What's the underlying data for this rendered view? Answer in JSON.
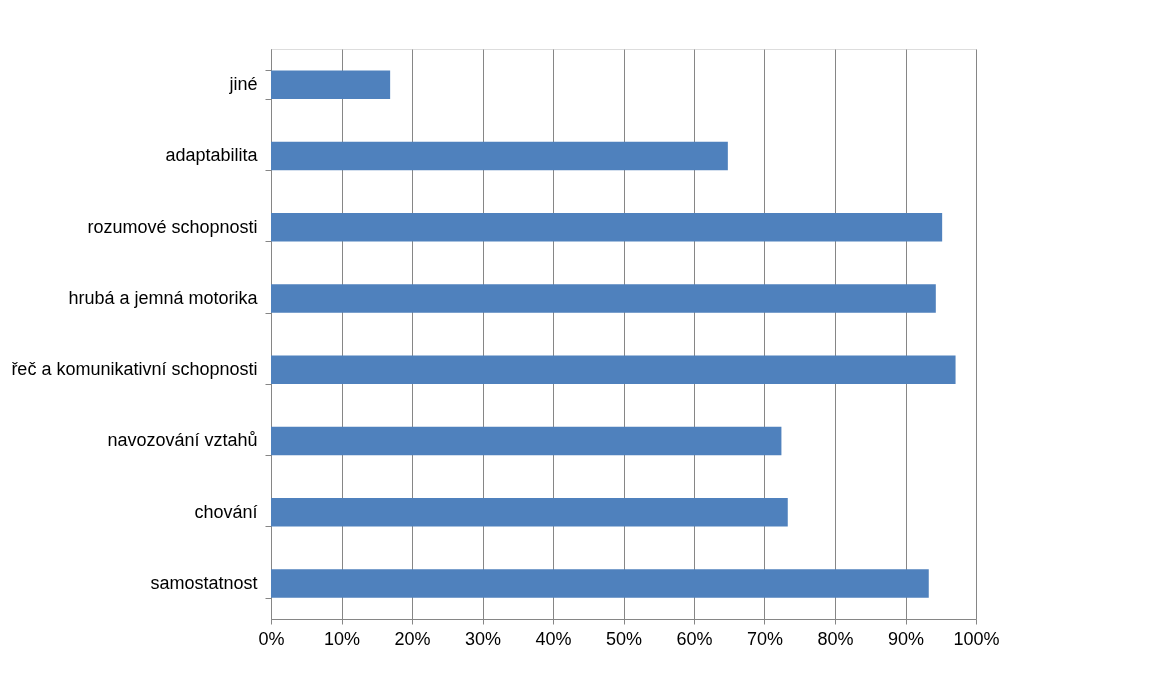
{
  "chart_data": {
    "type": "bar",
    "orientation": "horizontal",
    "categories": [
      "jiné",
      "adaptabilita",
      "rozumové schopnosti",
      "hrubá a jemná motorika",
      "řeč a komunikativní schopnosti",
      "navozování vztahů",
      "chování",
      "samostatnost"
    ],
    "values": [
      16.9,
      64.8,
      95.2,
      94.3,
      97.1,
      72.4,
      73.3,
      93.3
    ],
    "color": "#4f81bd",
    "xlim": [
      0,
      100
    ],
    "xticks": [
      {
        "value": 0,
        "label": "0%"
      },
      {
        "value": 10,
        "label": "10%"
      },
      {
        "value": 20,
        "label": "20%"
      },
      {
        "value": 30,
        "label": "30%"
      },
      {
        "value": 40,
        "label": "40%"
      },
      {
        "value": 50,
        "label": "50%"
      },
      {
        "value": 60,
        "label": "60%"
      },
      {
        "value": 70,
        "label": "70%"
      },
      {
        "value": 80,
        "label": "80%"
      },
      {
        "value": 90,
        "label": "90%"
      },
      {
        "value": 100,
        "label": "100%"
      }
    ],
    "grid": "x"
  }
}
